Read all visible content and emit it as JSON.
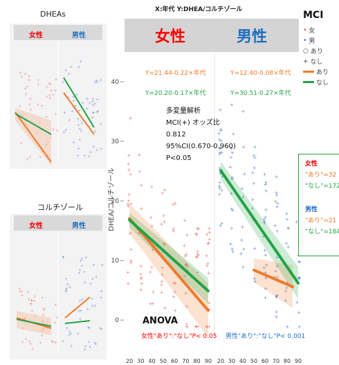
{
  "thumb_dhea": {
    "title": "DHEAs",
    "female": "女性",
    "male": "男性"
  },
  "thumb_cortisol": {
    "title": "コルチゾール",
    "female": "女性",
    "male": "男性"
  },
  "main": {
    "title": "X:年代 Y:DHEA/コルチゾール",
    "female_header": "女性",
    "male_header": "男性",
    "eq_female_ari": "Y=21.44-0.22×年代",
    "eq_female_nashi": "Y=20.20-0.17×年代",
    "eq_male_ari": "Y=12.40-0.08×年代",
    "eq_male_nashi": "Y=30.51-0.27×年代",
    "multi": [
      "多変量解析",
      "MCI(+) オッズ比",
      "0.812",
      "95%CI(0.670-0.960)",
      "P<0.05"
    ],
    "y_label": "DHEA/コルチゾール",
    "anova": "ANOVA",
    "anova_female": "女性\"あり\":\"なし\"P< 0.05",
    "anova_male": "男性\"あり\":\"なし\"P< 0.001"
  },
  "legend": {
    "title": "MCI",
    "items": [
      "女",
      "男",
      "あり",
      "なし",
      "あり",
      "なし"
    ]
  },
  "counts": {
    "female_title": "女性",
    "female_ari": "\"あり\"=32",
    "female_nashi": "\"なし\"=172",
    "male_title": "男性",
    "male_ari": "\"あり\"=21",
    "male_nashi": "\"なし\"=184"
  },
  "colors": {
    "ari": "#f07a2a",
    "nashi": "#21a346",
    "female_text": "#ff0000",
    "male_text": "#1f6fbf",
    "female_pts": "#e0524f",
    "male_pts": "#3a63c4"
  },
  "chart_data": {
    "type": "scatter",
    "title": "X:年代 Y:DHEA/コルチゾール",
    "ylabel": "DHEA/コルチゾール",
    "panels": [
      {
        "name": "女性",
        "x": [
          20,
          30,
          40,
          50,
          60,
          70,
          80,
          90
        ],
        "xlim": [
          15,
          95
        ],
        "ylim": [
          -3,
          45
        ],
        "yticks": [
          0,
          10,
          20,
          30,
          40
        ],
        "series": [
          {
            "name": "あり",
            "intercept": 21.44,
            "slope": -0.22,
            "x_range": [
              20,
              90
            ]
          },
          {
            "name": "なし",
            "intercept": 20.2,
            "slope": -0.17,
            "x_range": [
              20,
              90
            ]
          }
        ]
      },
      {
        "name": "男性",
        "x": [
          20,
          30,
          40,
          50,
          60,
          70,
          80,
          90
        ],
        "xlim": [
          15,
          95
        ],
        "ylim": [
          -3,
          45
        ],
        "series": [
          {
            "name": "あり",
            "intercept": 12.4,
            "slope": -0.08,
            "x_range": [
              50,
              85
            ]
          },
          {
            "name": "なし",
            "intercept": 30.51,
            "slope": -0.27,
            "x_range": [
              20,
              90
            ]
          }
        ]
      }
    ]
  }
}
